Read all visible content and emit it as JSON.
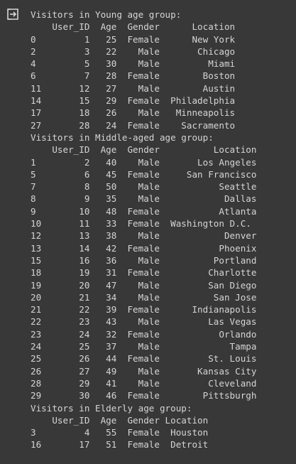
{
  "output_icon": "output-redirect-icon",
  "output_lines": [
    "Visitors in Young age group:",
    "    User_ID  Age  Gender      Location",
    "0         1   25  Female      New York",
    "2         3   22    Male       Chicago",
    "4         5   30    Male         Miami",
    "6         7   28  Female        Boston",
    "11       12   27    Male        Austin",
    "14       15   29  Female  Philadelphia",
    "17       18   26    Male   Minneapolis",
    "27       28   24  Female    Sacramento",
    "Visitors in Middle-aged age group:",
    "    User_ID  Age  Gender          Location",
    "1         2   40    Male       Los Angeles",
    "5         6   45  Female     San Francisco",
    "7         8   50    Male           Seattle",
    "8         9   35    Male            Dallas",
    "9        10   48  Female           Atlanta",
    "10       11   33  Female  Washington D.C.",
    "12       13   38    Male            Denver",
    "13       14   42  Female           Phoenix",
    "15       16   36    Male          Portland",
    "18       19   31  Female         Charlotte",
    "19       20   47    Male         San Diego",
    "20       21   34    Male          San Jose",
    "21       22   39  Female      Indianapolis",
    "22       23   43    Male         Las Vegas",
    "23       24   32  Female           Orlando",
    "24       25   37    Male             Tampa",
    "25       26   44  Female         St. Louis",
    "26       27   49    Male       Kansas City",
    "28       29   41    Male         Cleveland",
    "29       30   46  Female        Pittsburgh",
    "Visitors in Elderly age group:",
    "    User_ID  Age  Gender Location",
    "3         4   55  Female  Houston",
    "16       17   51  Female  Detroit"
  ]
}
